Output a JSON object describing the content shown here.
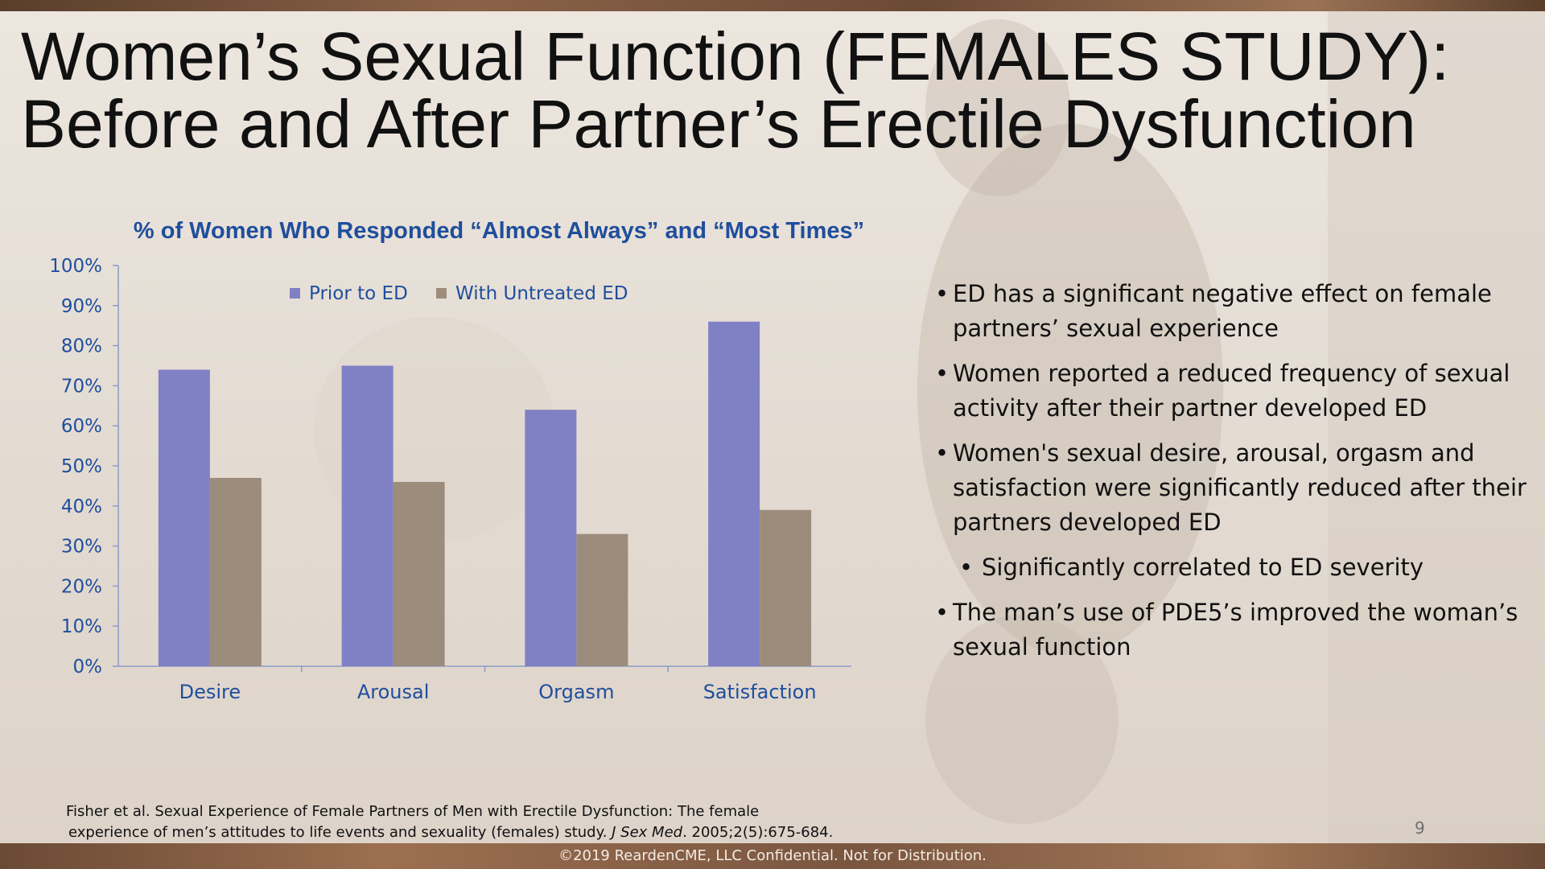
{
  "slide": {
    "title_line1": "Women’s Sexual Function (FEMALES STUDY):",
    "title_line2": "Before and After Partner’s Erectile Dysfunction",
    "bullets": [
      {
        "text": "ED has a significant negative effect on female partners’ sexual experience",
        "level": 1
      },
      {
        "text": "Women reported a reduced frequency of sexual activity after their partner developed ED",
        "level": 1
      },
      {
        "text": "Women's sexual desire, arousal, orgasm and satisfaction were significantly reduced after their partners developed ED",
        "level": 1
      },
      {
        "text": "Significantly correlated to ED severity",
        "level": 2
      },
      {
        "text": "The man’s use of PDE5’s improved the woman’s sexual function",
        "level": 1
      }
    ],
    "citation_line1": "Fisher et al. Sexual Experience of Female Partners of Men with Erectile Dysfunction: The female",
    "citation_line2_pre": "experience of men’s attitudes to life events and sexuality (females) study. ",
    "citation_journal": "J Sex Med",
    "citation_line2_post": ". 2005;2(5):675-684.",
    "page_number": "9",
    "footer": "©2019 ReardenCME, LLC  Confidential. Not for Distribution."
  },
  "chart_data": {
    "type": "bar",
    "title": "% of Women Who Responded “Almost Always” and “Most Times”",
    "categories": [
      "Desire",
      "Arousal",
      "Orgasm",
      "Satisfaction"
    ],
    "series": [
      {
        "name": "Prior to ED",
        "values": [
          74,
          75,
          64,
          86
        ],
        "color": "#8080c4"
      },
      {
        "name": "With Untreated ED",
        "values": [
          47,
          46,
          33,
          39
        ],
        "color": "#9b8c7c"
      }
    ],
    "ylim": [
      0,
      100
    ],
    "yticks": [
      "0%",
      "10%",
      "20%",
      "30%",
      "40%",
      "50%",
      "60%",
      "70%",
      "80%",
      "90%",
      "100%"
    ],
    "grid": false,
    "legend": "top",
    "axis_color": "#1f4e9c"
  }
}
